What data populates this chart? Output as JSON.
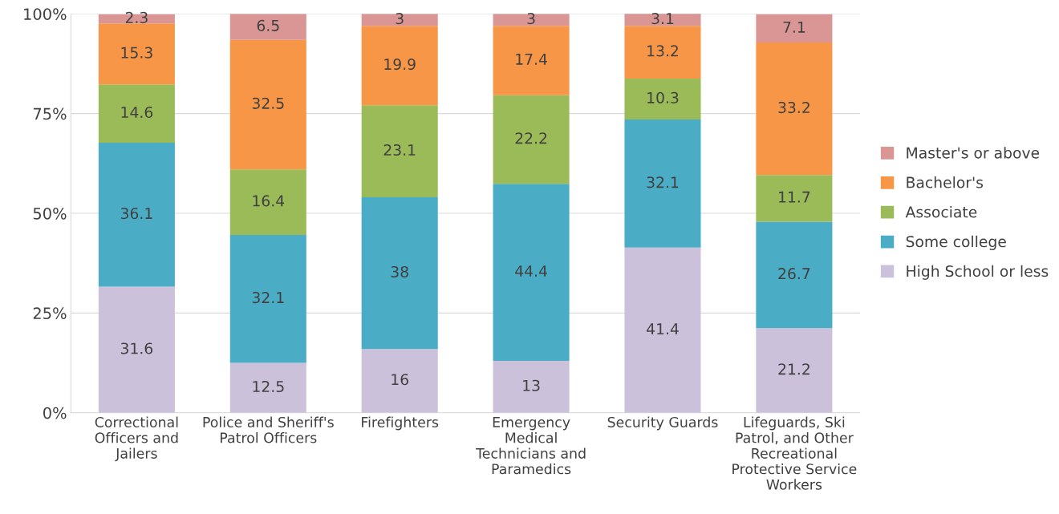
{
  "chart_data": {
    "type": "bar",
    "stacked": true,
    "categories": [
      "Correctional\nOfficers and\nJailers",
      "Police and Sheriff's\nPatrol Officers",
      "Firefighters",
      "Emergency\nMedical\nTechnicians and\nParamedics",
      "Security Guards",
      "Lifeguards, Ski\nPatrol, and Other\nRecreational\nProtective Service\nWorkers"
    ],
    "series": [
      {
        "name": "High School or less",
        "color": "#ccc1da",
        "values": [
          31.6,
          12.5,
          16,
          13,
          41.4,
          21.2
        ]
      },
      {
        "name": "Some college",
        "color": "#4bacc6",
        "values": [
          36.1,
          32.1,
          38,
          44.4,
          32.1,
          26.7
        ]
      },
      {
        "name": "Associate",
        "color": "#9bbb59",
        "values": [
          14.6,
          16.4,
          23.1,
          22.2,
          10.3,
          11.7
        ]
      },
      {
        "name": "Bachelor's",
        "color": "#f79646",
        "values": [
          15.3,
          32.5,
          19.9,
          17.4,
          13.2,
          33.2
        ]
      },
      {
        "name": "Master's or above",
        "color": "#d99694",
        "values": [
          2.3,
          6.5,
          3,
          3,
          3.1,
          7.1
        ]
      }
    ],
    "ylim": [
      0,
      100
    ],
    "yticks": [
      {
        "value": 0,
        "label": "0%"
      },
      {
        "value": 25,
        "label": "25%"
      },
      {
        "value": 50,
        "label": "50%"
      },
      {
        "value": 75,
        "label": "75%"
      },
      {
        "value": 100,
        "label": "100%"
      }
    ],
    "grid": "y",
    "legend": "right",
    "data_labels": true
  }
}
